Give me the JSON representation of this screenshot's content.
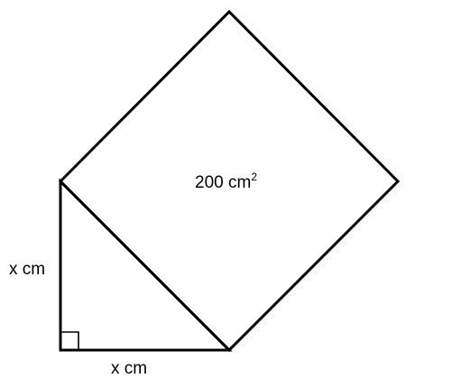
{
  "figure": {
    "square_area_label": {
      "value": "200 cm",
      "superscript": "2"
    },
    "vertical_leg_label": "x cm",
    "horizontal_leg_label": "x cm"
  },
  "colors": {
    "stroke": "#000000",
    "background": "#ffffff"
  }
}
